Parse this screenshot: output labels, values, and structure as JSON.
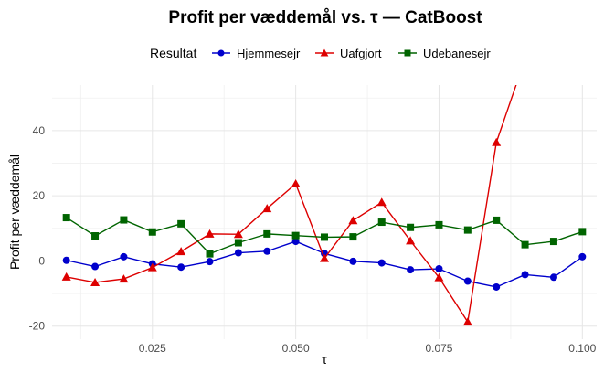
{
  "chart_data": {
    "type": "line",
    "title": "Profit per væddemål vs. τ — CatBoost",
    "xlabel": "τ",
    "ylabel": "Profit per væddemål",
    "legend_title": "Resultat",
    "legend_position": "top",
    "grid": true,
    "xlim": [
      0.0075,
      0.1025
    ],
    "ylim": [
      -24,
      54
    ],
    "x_ticks": [
      0.025,
      0.05,
      0.075,
      0.1
    ],
    "x_tick_labels": [
      "0.025",
      "0.050",
      "0.075",
      "0.100"
    ],
    "y_ticks": [
      -20,
      0,
      20,
      40
    ],
    "y_tick_labels": [
      "-20",
      "0",
      "20",
      "40"
    ],
    "x": [
      0.01,
      0.015,
      0.02,
      0.025,
      0.03,
      0.035,
      0.04,
      0.045,
      0.05,
      0.055,
      0.06,
      0.065,
      0.07,
      0.075,
      0.08,
      0.085,
      0.09,
      0.095,
      0.1
    ],
    "series": [
      {
        "name": "Hjemmesejr",
        "color": "#0000cc",
        "marker": "circle",
        "values": [
          0.2,
          -1.7,
          1.3,
          -0.9,
          -1.9,
          -0.2,
          2.5,
          3.0,
          6.0,
          2.3,
          -0.1,
          -0.6,
          -2.7,
          -2.4,
          -6.2,
          -8.0,
          -4.2,
          -5.0,
          1.3
        ]
      },
      {
        "name": "Uafgjort",
        "color": "#dd0000",
        "marker": "triangle",
        "values": [
          -4.9,
          -6.6,
          -5.5,
          -2.0,
          2.9,
          8.3,
          8.2,
          16.1,
          23.7,
          0.8,
          12.4,
          18.0,
          6.2,
          -5.1,
          -18.7,
          36.4,
          62.0,
          null,
          null
        ]
      },
      {
        "name": "Udebanesejr",
        "color": "#006400",
        "marker": "square",
        "values": [
          13.3,
          7.7,
          12.6,
          8.9,
          11.4,
          2.2,
          5.6,
          8.3,
          7.8,
          7.3,
          7.4,
          11.9,
          10.3,
          11.1,
          9.5,
          12.5,
          5.0,
          6.0,
          9.0
        ]
      }
    ]
  }
}
